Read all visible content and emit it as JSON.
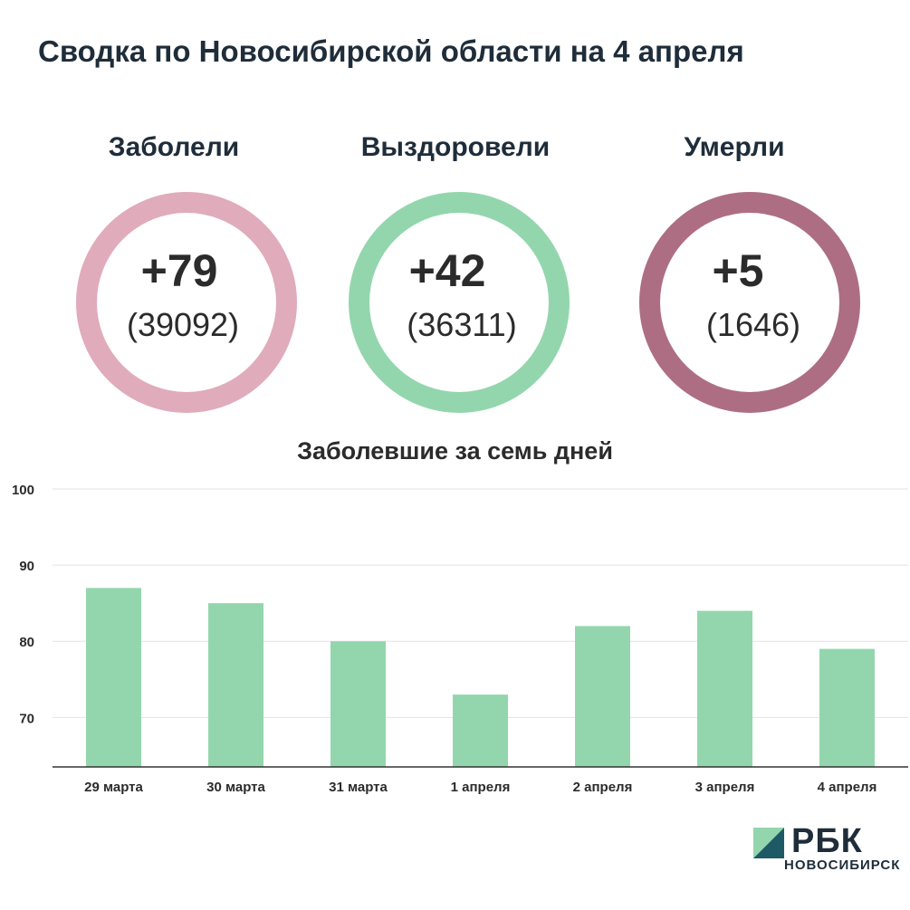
{
  "title": "Сводка по Новосибирской области на 4 апреля",
  "stats": [
    {
      "label": "Заболели",
      "delta": "+79",
      "total": "(39092)",
      "color": "#e0abbb"
    },
    {
      "label": "Выздоровели",
      "delta": "+42",
      "total": "(36311)",
      "color": "#93d6ad"
    },
    {
      "label": "Умерли",
      "delta": "+5",
      "total": "(1646)",
      "color": "#ad6e84"
    }
  ],
  "chart_data": {
    "type": "bar",
    "title": "Заболевшие за семь дней",
    "categories": [
      "29 марта",
      "30 марта",
      "31 марта",
      "1 апреля",
      "2 апреля",
      "3 апреля",
      "4 апреля"
    ],
    "values": [
      87,
      85,
      80,
      73,
      82,
      84,
      79
    ],
    "xlabel": "",
    "ylabel": "",
    "ylim": [
      63.5,
      100
    ],
    "yticks": [
      70,
      80,
      90,
      100
    ],
    "grid": true,
    "bar_color": "#93d6ad"
  },
  "logo": {
    "word": "РБК",
    "sub": "НОВОСИБИРСК",
    "mark_light": "#93d6ad",
    "mark_dark": "#1e5a66"
  }
}
